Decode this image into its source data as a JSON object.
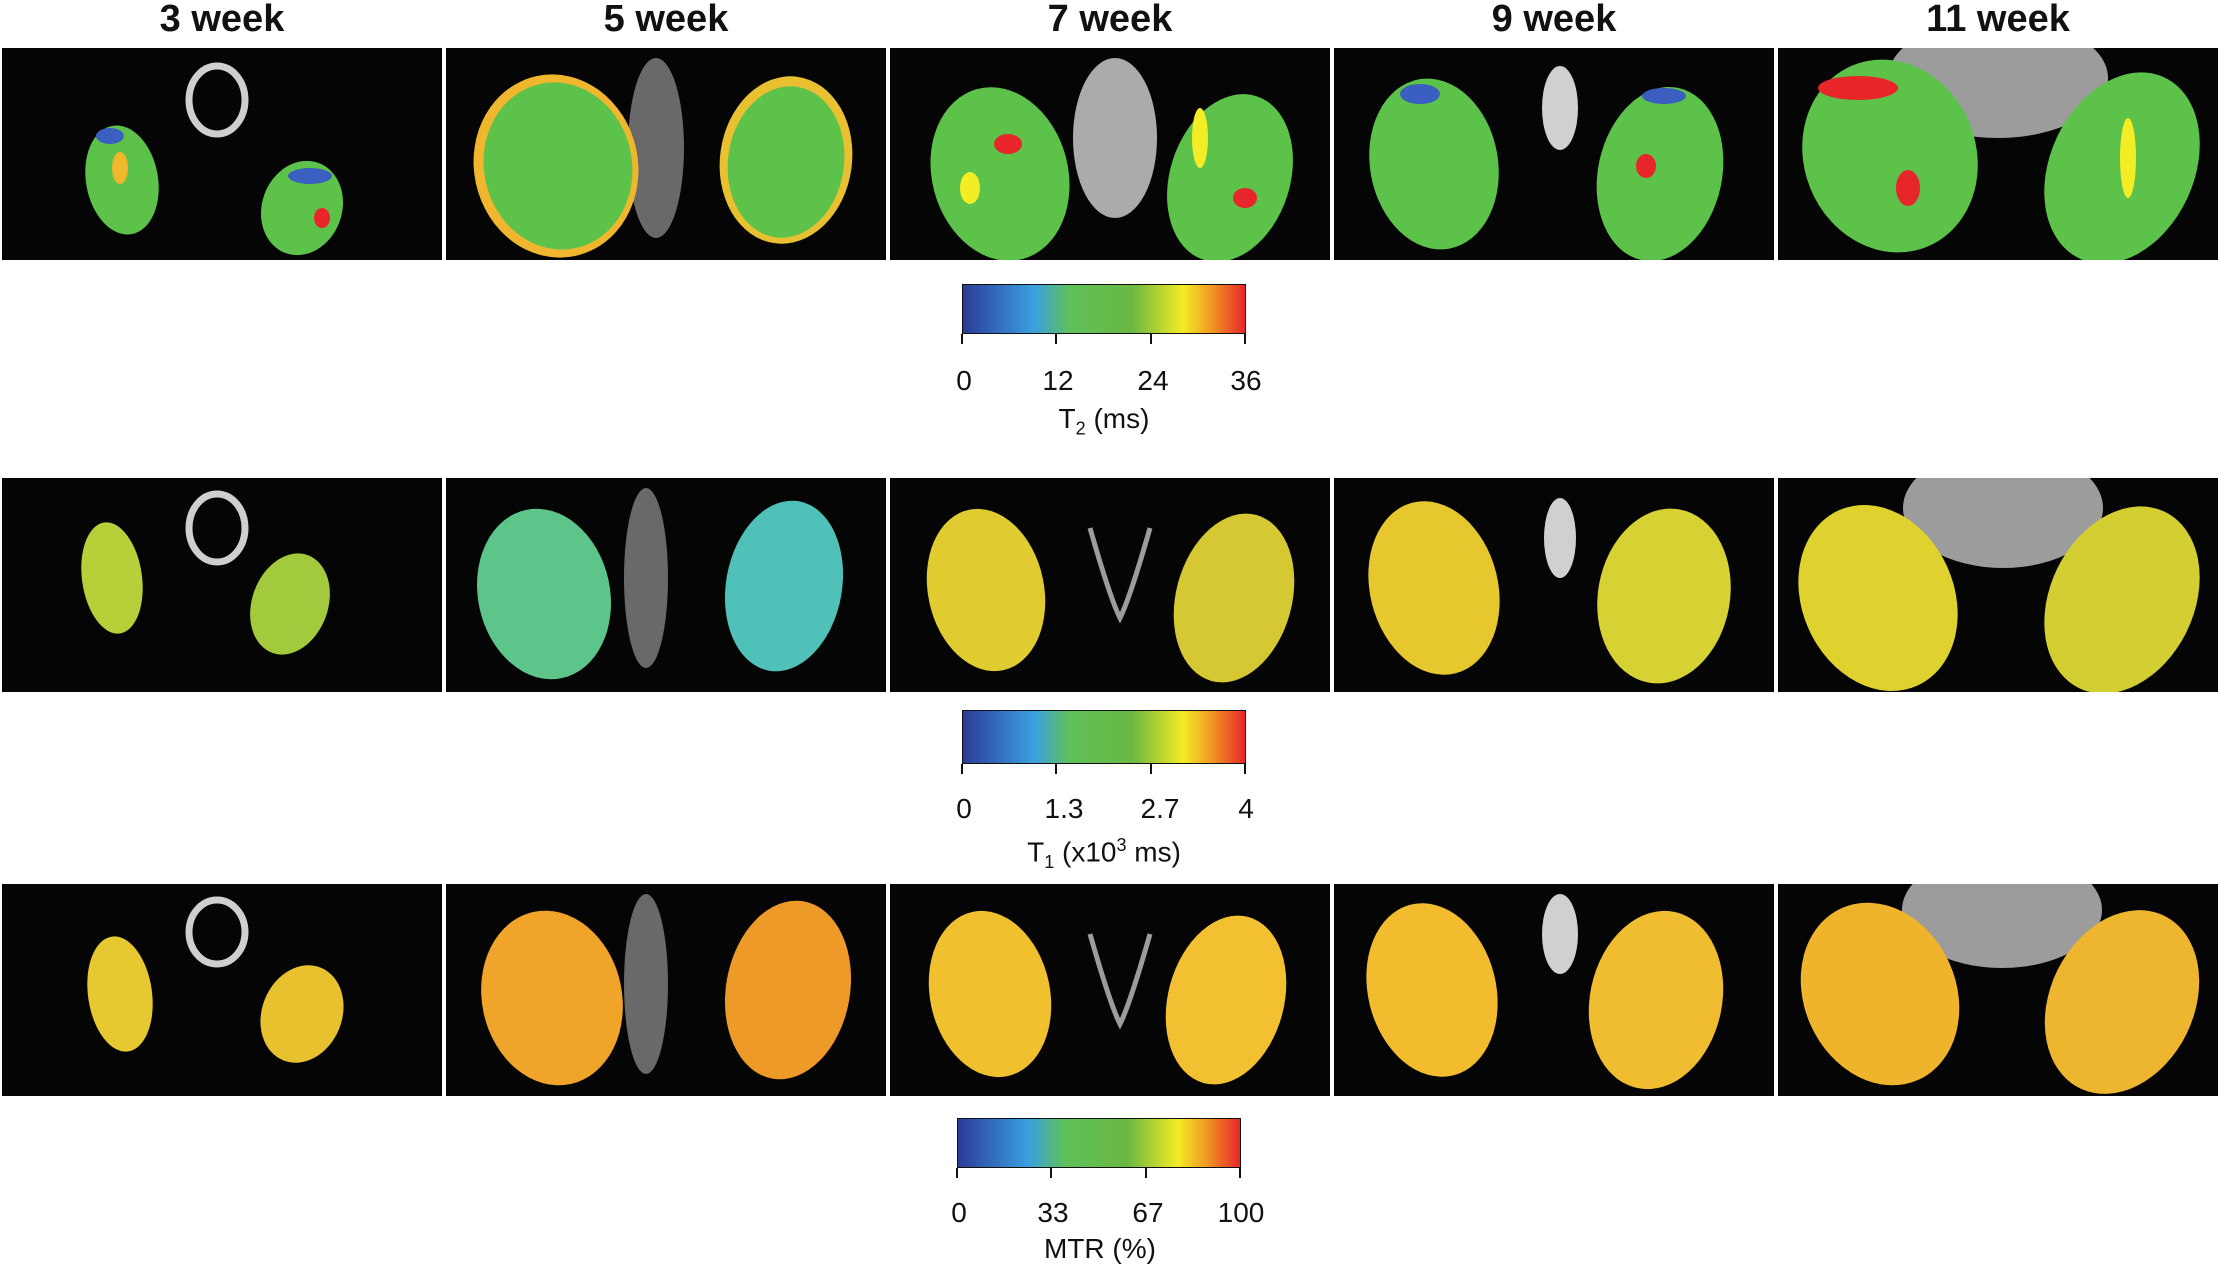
{
  "columns": [
    "3 week",
    "5 week",
    "7 week",
    "9 week",
    "11 week"
  ],
  "rows": [
    {
      "map": "T2",
      "dominant_color": "#5cc24a"
    },
    {
      "map": "T1",
      "dominant_color": "#b8cf3a"
    },
    {
      "map": "MTR",
      "dominant_color": "#f0b62e"
    }
  ],
  "colorbars": [
    {
      "ticks": [
        "0",
        "12",
        "24",
        "36"
      ],
      "label_main": "T",
      "label_sub": "2",
      "label_rest": " (ms)"
    },
    {
      "ticks": [
        "0",
        "1.3",
        "2.7",
        "4"
      ],
      "label_main": "T",
      "label_sub": "1",
      "label_rest": " (x10",
      "label_sup": "3",
      "label_end": " ms)"
    },
    {
      "ticks": [
        "0",
        "33",
        "67",
        "100"
      ],
      "label_main": "MTR (%)"
    }
  ],
  "colormap": [
    "#2b3b97",
    "#3aa0df",
    "#5fc15a",
    "#6ab842",
    "#f4ec25",
    "#f09a22",
    "#e8262a"
  ]
}
